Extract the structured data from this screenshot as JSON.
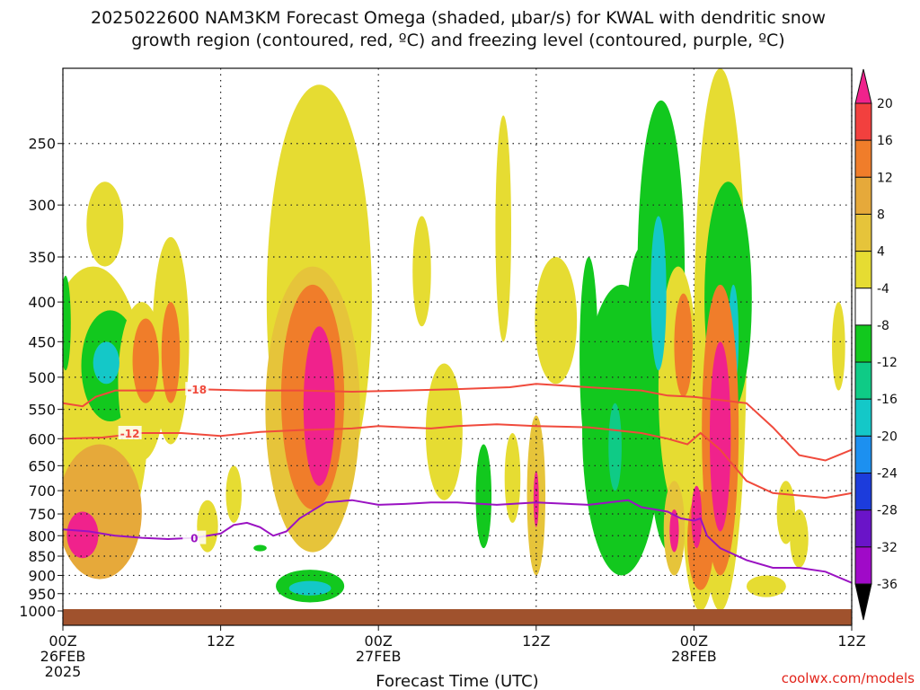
{
  "chart_data": {
    "type": "heatmap",
    "title_line1": "2025022600 NAM3KM Forecast Omega (shaded, μbar/s) for KWAL with dendritic snow",
    "title_line2": "growth region (contoured, red, ºC) and freezing level (contoured, purple, ºC)",
    "xlabel": "Forecast Time (UTC)",
    "x_ticks": [
      {
        "hour": 0,
        "label1": "00Z",
        "label2": "26FEB",
        "label3": "2025"
      },
      {
        "hour": 12,
        "label1": "12Z",
        "label2": "",
        "label3": ""
      },
      {
        "hour": 24,
        "label1": "00Z",
        "label2": "27FEB",
        "label3": ""
      },
      {
        "hour": 36,
        "label1": "12Z",
        "label2": "",
        "label3": ""
      },
      {
        "hour": 48,
        "label1": "00Z",
        "label2": "28FEB",
        "label3": ""
      },
      {
        "hour": 60,
        "label1": "12Z",
        "label2": "",
        "label3": ""
      }
    ],
    "xlim": [
      0,
      60
    ],
    "y_ticks": [
      "250",
      "300",
      "350",
      "400",
      "450",
      "500",
      "550",
      "600",
      "650",
      "700",
      "750",
      "800",
      "850",
      "900",
      "950",
      "1000"
    ],
    "ylim": [
      200,
      1000
    ],
    "y_scale": "log",
    "grid": "dotted",
    "colorbar": {
      "labels": [
        "20",
        "16",
        "12",
        "8",
        "4",
        "-4",
        "-8",
        "-12",
        "-16",
        "-20",
        "-24",
        "-28",
        "-32",
        "-36"
      ],
      "colors": [
        "#f0228c",
        "#f2403e",
        "#f07d2a",
        "#e6a93a",
        "#e6c43a",
        "#e6dc32",
        "#ffffff",
        "#12c81e",
        "#0fcb86",
        "#14c8c8",
        "#1c90f0",
        "#1c3cdc",
        "#6a14c8",
        "#a00ac8",
        "#9c9c9c",
        "#000000"
      ]
    },
    "fill_levels": {
      "4": "#e6dc32",
      "8": "#e6c43a",
      "12": "#e6a93a",
      "16": "#f07d2a",
      "20": "#f2403e",
      "24": "#f0228c",
      "-4": "#12c81e",
      "-8": "#0fcb86",
      "-12": "#14c8c8"
    },
    "omega_cells": [
      {
        "t": 1.5,
        "p": 800,
        "v": 24,
        "rt": 1.2,
        "rp": 55
      },
      {
        "t": 2.8,
        "p": 760,
        "v": 12,
        "rt": 3.2,
        "rp": 150
      },
      {
        "t": 2.3,
        "p": 620,
        "v": 4,
        "rt": 4.2,
        "rp": 260
      },
      {
        "t": 3.2,
        "p": 320,
        "v": 4,
        "rt": 1.4,
        "rp": 40
      },
      {
        "t": 3.3,
        "p": 480,
        "v": -12,
        "rt": 1.0,
        "rp": 30
      },
      {
        "t": 3.6,
        "p": 490,
        "v": -4,
        "rt": 2.2,
        "rp": 80
      },
      {
        "t": 6.3,
        "p": 480,
        "v": 16,
        "rt": 1.0,
        "rp": 60
      },
      {
        "t": 6.0,
        "p": 520,
        "v": 4,
        "rt": 1.8,
        "rp": 120
      },
      {
        "t": 8.2,
        "p": 470,
        "v": 16,
        "rt": 0.7,
        "rp": 70
      },
      {
        "t": 8.2,
        "p": 470,
        "v": 4,
        "rt": 1.4,
        "rp": 140
      },
      {
        "t": 11.0,
        "p": 780,
        "v": 4,
        "rt": 0.8,
        "rp": 60
      },
      {
        "t": 13.0,
        "p": 710,
        "v": 4,
        "rt": 0.6,
        "rp": 60
      },
      {
        "t": 15.0,
        "p": 830,
        "v": -4,
        "rt": 0.5,
        "rp": 8
      },
      {
        "t": 19.5,
        "p": 560,
        "v": 24,
        "rt": 1.2,
        "rp": 130
      },
      {
        "t": 19.0,
        "p": 560,
        "v": 16,
        "rt": 2.4,
        "rp": 180
      },
      {
        "t": 19.0,
        "p": 600,
        "v": 8,
        "rt": 3.6,
        "rp": 240
      },
      {
        "t": 19.5,
        "p": 480,
        "v": 4,
        "rt": 4.0,
        "rp": 270
      },
      {
        "t": 18.8,
        "p": 935,
        "v": -12,
        "rt": 1.6,
        "rp": 20
      },
      {
        "t": 18.8,
        "p": 930,
        "v": -4,
        "rt": 2.6,
        "rp": 45
      },
      {
        "t": 27.3,
        "p": 370,
        "v": 4,
        "rt": 0.7,
        "rp": 60
      },
      {
        "t": 29.0,
        "p": 600,
        "v": 4,
        "rt": 1.4,
        "rp": 120
      },
      {
        "t": 32.0,
        "p": 720,
        "v": -4,
        "rt": 0.6,
        "rp": 110
      },
      {
        "t": 33.5,
        "p": 340,
        "v": 4,
        "rt": 0.6,
        "rp": 110
      },
      {
        "t": 34.2,
        "p": 680,
        "v": 4,
        "rt": 0.6,
        "rp": 90
      },
      {
        "t": 36.0,
        "p": 720,
        "v": 24,
        "rt": 0.2,
        "rp": 60
      },
      {
        "t": 36.0,
        "p": 730,
        "v": 8,
        "rt": 0.7,
        "rp": 170
      },
      {
        "t": 37.5,
        "p": 430,
        "v": 4,
        "rt": 1.6,
        "rp": 80
      },
      {
        "t": 40.0,
        "p": 490,
        "v": -4,
        "rt": 0.7,
        "rp": 140
      },
      {
        "t": 42.0,
        "p": 620,
        "v": -8,
        "rt": 0.5,
        "rp": 80
      },
      {
        "t": 42.5,
        "p": 640,
        "v": -4,
        "rt": 3.0,
        "rp": 260
      },
      {
        "t": 45.3,
        "p": 400,
        "v": -12,
        "rt": 0.6,
        "rp": 90
      },
      {
        "t": 45.5,
        "p": 420,
        "v": -4,
        "rt": 1.8,
        "rp": 200
      },
      {
        "t": 46.2,
        "p": 640,
        "v": -4,
        "rt": 1.6,
        "rp": 200
      },
      {
        "t": 44.0,
        "p": 470,
        "v": -4,
        "rt": 1.2,
        "rp": 130
      },
      {
        "t": 46.8,
        "p": 550,
        "v": 4,
        "rt": 1.5,
        "rp": 190
      },
      {
        "t": 47.2,
        "p": 460,
        "v": 16,
        "rt": 0.7,
        "rp": 70
      },
      {
        "t": 46.5,
        "p": 790,
        "v": 24,
        "rt": 0.35,
        "rp": 50
      },
      {
        "t": 46.5,
        "p": 790,
        "v": 8,
        "rt": 0.8,
        "rp": 110
      },
      {
        "t": 47.8,
        "p": 760,
        "v": -4,
        "rt": 0.5,
        "rp": 120
      },
      {
        "t": 48.2,
        "p": 760,
        "v": 24,
        "rt": 0.4,
        "rp": 70
      },
      {
        "t": 48.5,
        "p": 820,
        "v": 16,
        "rt": 1.0,
        "rp": 120
      },
      {
        "t": 48.5,
        "p": 750,
        "v": 4,
        "rt": 1.4,
        "rp": 250
      },
      {
        "t": 50.0,
        "p": 620,
        "v": 24,
        "rt": 0.8,
        "rp": 170
      },
      {
        "t": 50.0,
        "p": 640,
        "v": 16,
        "rt": 1.4,
        "rp": 260
      },
      {
        "t": 50.0,
        "p": 600,
        "v": 4,
        "rt": 2.0,
        "rp": 400
      },
      {
        "t": 50.6,
        "p": 420,
        "v": -4,
        "rt": 1.8,
        "rp": 140
      },
      {
        "t": 51.0,
        "p": 450,
        "v": -12,
        "rt": 0.4,
        "rp": 70
      },
      {
        "t": 53.5,
        "p": 930,
        "v": 4,
        "rt": 1.5,
        "rp": 30
      },
      {
        "t": 55.0,
        "p": 750,
        "v": 4,
        "rt": 0.7,
        "rp": 70
      },
      {
        "t": 56.0,
        "p": 810,
        "v": 4,
        "rt": 0.7,
        "rp": 70
      },
      {
        "t": 59.0,
        "p": 460,
        "v": 4,
        "rt": 0.5,
        "rp": 60
      },
      {
        "t": 0.2,
        "p": 430,
        "v": -4,
        "rt": 0.4,
        "rp": 60
      }
    ],
    "dgz_contours": [
      {
        "label": "-18",
        "color": "#f04a3c",
        "label_t": 10.2,
        "points": [
          [
            0,
            540
          ],
          [
            1.5,
            545
          ],
          [
            2.5,
            530
          ],
          [
            4,
            520
          ],
          [
            6,
            520
          ],
          [
            8,
            520
          ],
          [
            10,
            518
          ],
          [
            14,
            520
          ],
          [
            18,
            520
          ],
          [
            22,
            522
          ],
          [
            26,
            520
          ],
          [
            30,
            518
          ],
          [
            34,
            515
          ],
          [
            36,
            510
          ],
          [
            40,
            515
          ],
          [
            44,
            520
          ],
          [
            46,
            528
          ],
          [
            48,
            530
          ],
          [
            50,
            535
          ],
          [
            52,
            540
          ],
          [
            54,
            580
          ],
          [
            56,
            630
          ],
          [
            58,
            640
          ],
          [
            60,
            620
          ]
        ]
      },
      {
        "label": "-12",
        "color": "#f04a3c",
        "label_t": 5.1,
        "points": [
          [
            0,
            600
          ],
          [
            3,
            598
          ],
          [
            6,
            590
          ],
          [
            9,
            590
          ],
          [
            12,
            595
          ],
          [
            15,
            588
          ],
          [
            18,
            585
          ],
          [
            22,
            582
          ],
          [
            24,
            578
          ],
          [
            26,
            580
          ],
          [
            28,
            582
          ],
          [
            30,
            578
          ],
          [
            33,
            575
          ],
          [
            36,
            578
          ],
          [
            40,
            580
          ],
          [
            44,
            590
          ],
          [
            46,
            600
          ],
          [
            47.5,
            610
          ],
          [
            48.5,
            590
          ],
          [
            50,
            620
          ],
          [
            52,
            680
          ],
          [
            54,
            705
          ],
          [
            56,
            710
          ],
          [
            58,
            715
          ],
          [
            60,
            705
          ]
        ]
      },
      {
        "label": "0",
        "color": "#9a12c2",
        "label_t": 10.0,
        "points": [
          [
            0,
            785
          ],
          [
            2,
            790
          ],
          [
            4,
            800
          ],
          [
            6,
            805
          ],
          [
            8,
            808
          ],
          [
            10,
            805
          ],
          [
            12,
            795
          ],
          [
            13,
            775
          ],
          [
            14,
            770
          ],
          [
            15,
            780
          ],
          [
            16,
            800
          ],
          [
            17,
            790
          ],
          [
            18,
            760
          ],
          [
            20,
            725
          ],
          [
            22,
            720
          ],
          [
            24,
            730
          ],
          [
            26,
            728
          ],
          [
            28,
            725
          ],
          [
            30,
            725
          ],
          [
            33,
            730
          ],
          [
            36,
            725
          ],
          [
            40,
            730
          ],
          [
            43,
            720
          ],
          [
            44,
            735
          ],
          [
            46,
            745
          ],
          [
            47,
            760
          ],
          [
            48,
            765
          ],
          [
            48.5,
            760
          ],
          [
            49,
            800
          ],
          [
            50,
            830
          ],
          [
            52,
            860
          ],
          [
            54,
            880
          ],
          [
            56,
            880
          ],
          [
            58,
            890
          ],
          [
            60,
            920
          ]
        ]
      }
    ]
  },
  "credit": "coolwx.com/models"
}
